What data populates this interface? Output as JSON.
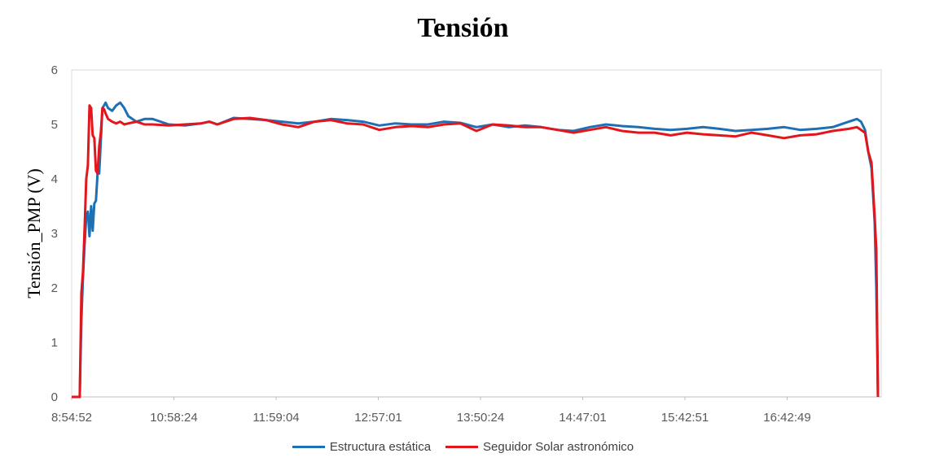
{
  "chart_data": {
    "type": "line",
    "title": "Tensión",
    "xlabel": "",
    "ylabel": "Tensión_PMP (V)",
    "ylim": [
      0,
      6
    ],
    "yticks": [
      0,
      1,
      2,
      3,
      4,
      5,
      6
    ],
    "xlim": [
      0,
      1000
    ],
    "xtick_labels": [
      "8:54:52",
      "10:58:24",
      "11:59:04",
      "12:57:01",
      "13:50:24",
      "14:47:01",
      "15:42:51",
      "16:42:49"
    ],
    "grid": false,
    "legend_position": "bottom",
    "series": [
      {
        "name": "Estructura estática",
        "color": "#1F6FB4",
        "x": [
          0,
          8,
          10,
          12,
          14,
          16,
          18,
          20,
          22,
          24,
          26,
          28,
          30,
          32,
          34,
          36,
          38,
          40,
          42,
          45,
          50,
          55,
          60,
          65,
          70,
          80,
          90,
          100,
          120,
          140,
          160,
          170,
          180,
          200,
          220,
          240,
          260,
          280,
          300,
          320,
          340,
          360,
          380,
          400,
          420,
          440,
          460,
          480,
          500,
          520,
          540,
          560,
          580,
          600,
          620,
          640,
          660,
          680,
          700,
          720,
          740,
          760,
          780,
          800,
          820,
          840,
          860,
          880,
          900,
          920,
          940,
          960,
          970,
          975,
          980,
          984,
          988,
          992,
          994,
          996
        ],
        "y": [
          0,
          0,
          0,
          1.4,
          2.2,
          2.8,
          3.3,
          3.4,
          2.95,
          3.5,
          3.05,
          3.55,
          3.6,
          4.1,
          4.1,
          4.7,
          5.3,
          5.35,
          5.4,
          5.3,
          5.25,
          5.35,
          5.4,
          5.3,
          5.15,
          5.05,
          5.1,
          5.1,
          5.0,
          4.98,
          5.02,
          5.05,
          5.0,
          5.12,
          5.1,
          5.08,
          5.05,
          5.02,
          5.05,
          5.1,
          5.08,
          5.05,
          4.98,
          5.02,
          5.0,
          5.0,
          5.05,
          5.03,
          4.95,
          5.0,
          4.95,
          4.98,
          4.95,
          4.9,
          4.88,
          4.95,
          5.0,
          4.97,
          4.95,
          4.92,
          4.9,
          4.92,
          4.95,
          4.92,
          4.88,
          4.9,
          4.92,
          4.95,
          4.9,
          4.92,
          4.95,
          5.05,
          5.1,
          5.05,
          4.9,
          4.5,
          4.2,
          3.2,
          2.0,
          0
        ]
      },
      {
        "name": "Seguidor Solar astronómico",
        "color": "#E3161B",
        "x": [
          0,
          8,
          10,
          12,
          14,
          16,
          18,
          20,
          22,
          24,
          26,
          28,
          30,
          32,
          34,
          36,
          38,
          40,
          42,
          45,
          50,
          55,
          60,
          65,
          70,
          80,
          90,
          100,
          120,
          140,
          160,
          170,
          180,
          200,
          220,
          240,
          260,
          280,
          300,
          320,
          340,
          360,
          380,
          400,
          420,
          440,
          460,
          480,
          500,
          520,
          540,
          560,
          580,
          600,
          620,
          640,
          660,
          680,
          700,
          720,
          740,
          760,
          780,
          800,
          820,
          840,
          860,
          880,
          900,
          920,
          940,
          960,
          970,
          975,
          980,
          984,
          988,
          992,
          994,
          996
        ],
        "y": [
          0,
          0,
          0,
          1.9,
          2.3,
          3.1,
          4.0,
          4.25,
          5.35,
          5.3,
          4.8,
          4.75,
          4.15,
          4.1,
          4.6,
          4.85,
          5.3,
          5.28,
          5.2,
          5.1,
          5.05,
          5.02,
          5.05,
          5.0,
          5.02,
          5.05,
          5.0,
          5.0,
          4.98,
          5.0,
          5.02,
          5.05,
          5.0,
          5.1,
          5.12,
          5.08,
          5.0,
          4.95,
          5.05,
          5.08,
          5.02,
          5.0,
          4.9,
          4.95,
          4.97,
          4.95,
          5.0,
          5.02,
          4.88,
          5.0,
          4.98,
          4.95,
          4.95,
          4.9,
          4.85,
          4.9,
          4.95,
          4.88,
          4.85,
          4.85,
          4.8,
          4.85,
          4.82,
          4.8,
          4.78,
          4.85,
          4.8,
          4.75,
          4.8,
          4.82,
          4.88,
          4.92,
          4.95,
          4.9,
          4.85,
          4.5,
          4.3,
          3.3,
          2.7,
          0
        ]
      }
    ]
  }
}
